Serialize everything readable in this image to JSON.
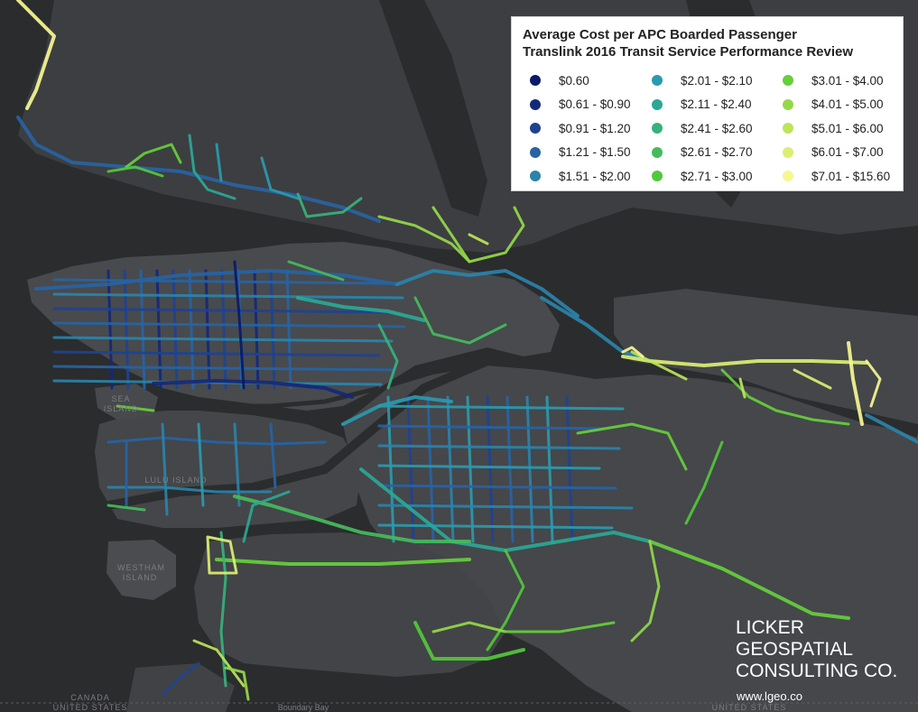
{
  "legend": {
    "title": "Average Cost per APC Boarded Passenger",
    "subtitle": "Translink 2016 Transit Service Performance Review",
    "items": [
      {
        "label": "$0.60",
        "color": "#0a1a66"
      },
      {
        "label": "$0.61 - $0.90",
        "color": "#14287a"
      },
      {
        "label": "$0.91 - $1.20",
        "color": "#1f4290"
      },
      {
        "label": "$1.21 - $1.50",
        "color": "#2763a3"
      },
      {
        "label": "$1.51 - $2.00",
        "color": "#2a83aa"
      },
      {
        "label": "$2.01 - $2.10",
        "color": "#2a9aae"
      },
      {
        "label": "$2.11 - $2.40",
        "color": "#2aa896"
      },
      {
        "label": "$2.41 - $2.60",
        "color": "#36b27c"
      },
      {
        "label": "$2.61 - $2.70",
        "color": "#44bc5c"
      },
      {
        "label": "$2.71 - $3.00",
        "color": "#52c83c"
      },
      {
        "label": "$3.01 - $4.00",
        "color": "#66cf3c"
      },
      {
        "label": "$4.01 - $5.00",
        "color": "#94d84a"
      },
      {
        "label": "$5.01 - $6.00",
        "color": "#bde45a"
      },
      {
        "label": "$6.01 - $7.00",
        "color": "#dcef72"
      },
      {
        "label": "$7.01 - $15.60",
        "color": "#f6f792"
      }
    ]
  },
  "places": {
    "sea_island": "SEA ISLAND",
    "lulu_island": "LULU ISLAND",
    "westham_island": "WESTHAM ISLAND",
    "canada": "CANADA",
    "united_states": "UNITED STATES",
    "boundary_bay": "Boundary Bay"
  },
  "branding": {
    "line1": "LICKER",
    "line2": "GEOSPATIAL",
    "line3": "CONSULTING CO.",
    "url": "www.lgeo.co"
  },
  "map_colors": {
    "water": "#2b2c2e",
    "land": "#3f4043",
    "land_light": "#4a4b4e",
    "river": "#2e2f31"
  }
}
